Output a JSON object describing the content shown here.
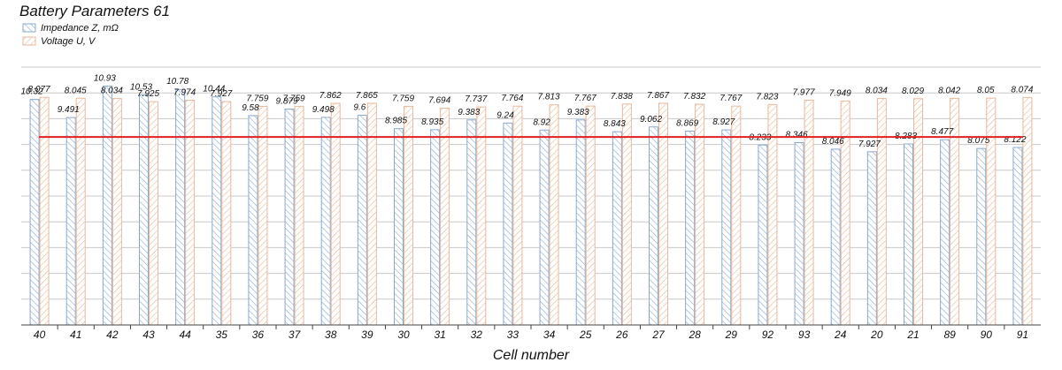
{
  "chart_data": {
    "type": "bar",
    "title": "Battery Parameters 61",
    "xlabel": "Cell number",
    "categories": [
      "40",
      "41",
      "42",
      "43",
      "44",
      "35",
      "36",
      "37",
      "38",
      "39",
      "30",
      "31",
      "32",
      "33",
      "34",
      "25",
      "26",
      "27",
      "28",
      "29",
      "92",
      "93",
      "24",
      "20",
      "21",
      "89",
      "90",
      "91"
    ],
    "series": [
      {
        "name": "Impedance Z, mΩ",
        "label_text": [
          "10.32",
          "9.491",
          "10.93",
          "10.53",
          "10.78",
          "10.44",
          "9.58",
          "9.879",
          "9.498",
          "9.6",
          "8.985",
          "8.935",
          "9.383",
          "9.24",
          "8.92",
          "9.383",
          "8.843",
          "9.062",
          "8.869",
          "8.927",
          "8.233",
          "8.346",
          "8.046",
          "7.927",
          "8.283",
          "8.477",
          "8.075",
          "8.122"
        ],
        "values": [
          10.32,
          9.491,
          10.93,
          10.53,
          10.78,
          10.44,
          9.58,
          9.879,
          9.498,
          9.6,
          8.985,
          8.935,
          9.383,
          9.24,
          8.92,
          9.383,
          8.843,
          9.062,
          8.869,
          8.927,
          8.233,
          8.346,
          8.046,
          7.927,
          8.283,
          8.477,
          8.075,
          8.122
        ],
        "color": "#8aa9cf"
      },
      {
        "name": "Voltage U, V",
        "label_text": [
          "8.077",
          "8.045",
          "8.034",
          "7.925",
          "7.974",
          "7.927",
          "7.759",
          "7.759",
          "7.862",
          "7.865",
          "7.759",
          "7.694",
          "7.737",
          "7.764",
          "7.813",
          "7.767",
          "7.838",
          "7.867",
          "7.832",
          "7.767",
          "7.823",
          "7.977",
          "7.949",
          "8.034",
          "8.029",
          "8.042",
          "8.05",
          "8.074"
        ],
        "values": [
          8.077,
          8.045,
          8.034,
          7.925,
          7.974,
          7.927,
          7.759,
          7.759,
          7.862,
          7.865,
          7.759,
          7.694,
          7.737,
          7.764,
          7.813,
          7.767,
          7.838,
          7.867,
          7.832,
          7.767,
          7.823,
          7.977,
          7.949,
          8.034,
          8.029,
          8.042,
          8.05,
          8.074
        ],
        "color": "#e8b89a"
      }
    ],
    "reference_line": {
      "series": "Impedance Z, mΩ",
      "value": 8.6,
      "color": "#e02020"
    },
    "impedance_axis_range": [
      0,
      11.8
    ],
    "voltage_axis_range": [
      0,
      9.15
    ],
    "grid": true,
    "legend_position": "top-left"
  }
}
